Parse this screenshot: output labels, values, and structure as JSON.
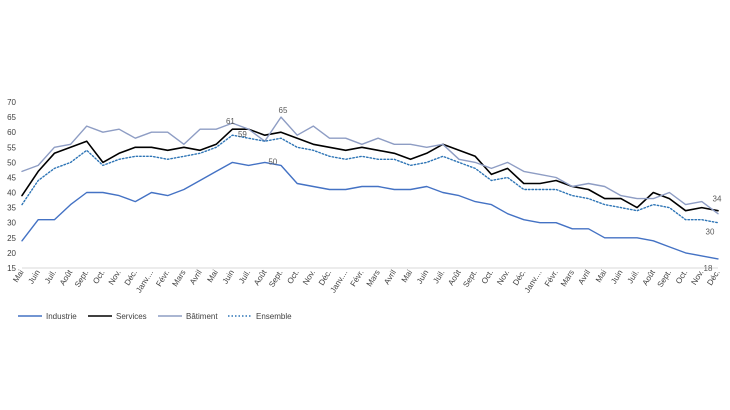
{
  "chart_data": {
    "type": "line",
    "categories": [
      "Mai",
      "Juin",
      "Juil.",
      "Août",
      "Sept.",
      "Oct.",
      "Nov.",
      "Déc.",
      "Janv.",
      "Févr.",
      "Mars",
      "Avril",
      "Mai",
      "Juin",
      "Juil.",
      "Août",
      "Sept.",
      "Oct.",
      "Nov.",
      "Déc.",
      "Janv.",
      "Févr.",
      "Mars",
      "Avril",
      "Mai",
      "Juin",
      "Juil.",
      "Août",
      "Sept.",
      "Oct.",
      "Nov.",
      "Déc.",
      "Janv.",
      "Févr.",
      "Mars",
      "Avril",
      "Mai",
      "Juin",
      "Juil.",
      "Août",
      "Sept.",
      "Oct.",
      "Nov.",
      "Déc."
    ],
    "category_labels": [
      "Mai",
      "Juin",
      "Juil.",
      "Août",
      "Sept.",
      "Oct.",
      "Nov.",
      "Déc.",
      "Janv....",
      "Févr.",
      "Mars",
      "Avril",
      "Mai",
      "Juin",
      "Juil.",
      "Août",
      "Sept.",
      "Oct.",
      "Nov.",
      "Déc.",
      "Janv....",
      "Févr.",
      "Mars",
      "Avril",
      "Mai",
      "Juin",
      "Juil.",
      "Août",
      "Sept.",
      "Oct.",
      "Nov.",
      "Déc.",
      "Janv....",
      "Févr.",
      "Mars",
      "Avril",
      "Mai",
      "Juin",
      "Juil.",
      "Août",
      "Sept.",
      "Oct.",
      "Nov.",
      "Déc."
    ],
    "ylim": [
      15,
      70
    ],
    "yticks": [
      15,
      20,
      25,
      30,
      35,
      40,
      45,
      50,
      55,
      60,
      65,
      70
    ],
    "grid": false,
    "legend": "bottom-left",
    "series": [
      {
        "name": "Industrie",
        "color": "#4472c4",
        "style": "solid",
        "values": [
          24,
          31,
          31,
          36,
          40,
          40,
          39,
          37,
          40,
          39,
          41,
          44,
          47,
          50,
          49,
          50,
          49,
          43,
          42,
          41,
          41,
          42,
          42,
          41,
          41,
          42,
          40,
          39,
          37,
          36,
          33,
          31,
          30,
          30,
          28,
          28,
          25,
          25,
          25,
          24,
          22,
          20,
          19,
          18
        ]
      },
      {
        "name": "Services",
        "color": "#000000",
        "style": "solid",
        "values": [
          39,
          47,
          53,
          55,
          57,
          50,
          53,
          55,
          55,
          54,
          55,
          54,
          56,
          61,
          61,
          59,
          60,
          58,
          56,
          55,
          54,
          55,
          54,
          53,
          51,
          53,
          56,
          54,
          52,
          46,
          48,
          43,
          43,
          44,
          42,
          41,
          38,
          38,
          35,
          40,
          38,
          34,
          35,
          34
        ]
      },
      {
        "name": "Bâtiment",
        "color": "#8e9dc4",
        "style": "solid",
        "values": [
          47,
          49,
          55,
          56,
          62,
          60,
          61,
          58,
          60,
          60,
          56,
          61,
          61,
          63,
          61,
          57,
          65,
          59,
          62,
          58,
          58,
          56,
          58,
          56,
          56,
          55,
          56,
          51,
          50,
          48,
          50,
          47,
          46,
          45,
          42,
          43,
          42,
          39,
          38,
          38,
          40,
          36,
          37,
          33
        ]
      },
      {
        "name": "Ensemble",
        "color": "#2e75b6",
        "style": "dotted",
        "values": [
          36,
          44,
          48,
          50,
          54,
          49,
          51,
          52,
          52,
          51,
          52,
          53,
          55,
          59,
          58,
          57,
          58,
          55,
          54,
          52,
          51,
          52,
          51,
          51,
          49,
          50,
          52,
          50,
          48,
          44,
          45,
          41,
          41,
          41,
          39,
          38,
          36,
          35,
          34,
          36,
          35,
          31,
          31,
          30
        ]
      }
    ],
    "annotations": [
      {
        "text": "61",
        "series": "Services",
        "index": 13
      },
      {
        "text": "59",
        "series": "Ensemble",
        "index": 13
      },
      {
        "text": "65",
        "series": "Bâtiment",
        "index": 16
      },
      {
        "text": "50",
        "series": "Industrie",
        "index": 15
      },
      {
        "text": "34",
        "series": "Services",
        "index": 43
      },
      {
        "text": "30",
        "series": "Ensemble",
        "index": 43
      },
      {
        "text": "18",
        "series": "Industrie",
        "index": 43
      }
    ]
  }
}
